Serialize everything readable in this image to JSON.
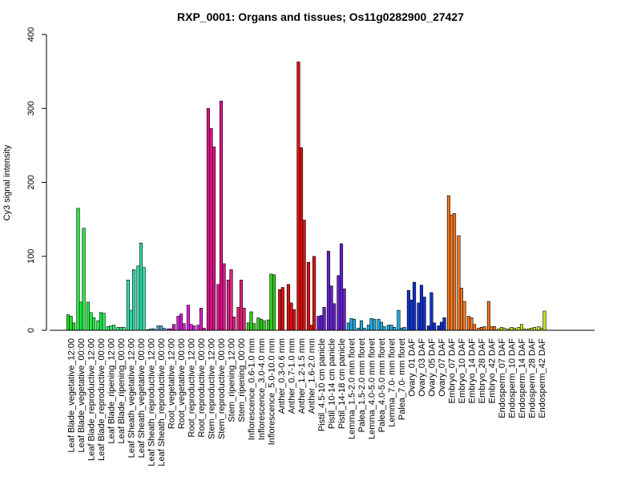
{
  "chart_data": {
    "type": "bar",
    "title": "RXP_0001: Organs and tissues; Os11g0282900_27427",
    "xlabel": "",
    "ylabel": "Cy3 signal intensity",
    "ylim": [
      0,
      400
    ],
    "yticks": [
      0,
      100,
      200,
      300,
      400
    ],
    "grid": false,
    "groups": [
      {
        "label": "Leaf Blade_vegetative_12:00",
        "color": "#22dd22",
        "values": [
          21,
          19,
          10
        ]
      },
      {
        "label": "Leaf Blade_vegetative_00:00",
        "color": "#22ee44",
        "values": [
          165,
          38,
          138
        ]
      },
      {
        "label": "Leaf Blade_reproductive_12:00",
        "color": "#22ee44",
        "values": [
          38,
          24,
          17
        ]
      },
      {
        "label": "Leaf Blade_reproductive_00:00",
        "color": "#22ee55",
        "values": [
          13,
          24,
          23
        ]
      },
      {
        "label": "Leaf Blade_ripening_12:00",
        "color": "#33ee77",
        "values": [
          5,
          6,
          7
        ]
      },
      {
        "label": "Leaf Blade_ripening_00:00",
        "color": "#33ee88",
        "values": [
          4,
          4,
          4
        ]
      },
      {
        "label": "Leaf Sheath_vegetative_12:00",
        "color": "#33ddaa",
        "values": [
          68,
          27,
          82
        ]
      },
      {
        "label": "Leaf Sheath_vegetative_00:00",
        "color": "#33ddaa",
        "values": [
          87,
          118,
          85
        ]
      },
      {
        "label": "Leaf Sheath_reproductive_12:00",
        "color": "#22cccc",
        "values": [
          1,
          2,
          2
        ]
      },
      {
        "label": "Leaf Sheath_reproductive_00:00",
        "color": "#55aacc",
        "values": [
          6,
          6,
          3
        ]
      },
      {
        "label": "Root_vegetative_12:00",
        "color": "#cc22cc",
        "values": [
          2,
          2,
          8
        ]
      },
      {
        "label": "Root_vegetative_00:00",
        "color": "#cc22cc",
        "values": [
          19,
          22,
          9
        ]
      },
      {
        "label": "Root_reproductive_12:00",
        "color": "#dd22dd",
        "values": [
          34,
          8,
          6
        ]
      },
      {
        "label": "Root_reproductive_00:00",
        "color": "#dd22cc",
        "values": [
          7,
          30,
          3
        ]
      },
      {
        "label": "Stem_reproductive_12:00",
        "color": "#dd1188",
        "values": [
          300,
          273,
          248
        ]
      },
      {
        "label": "Stem_reproductive_00:00",
        "color": "#dd1188",
        "values": [
          62,
          310,
          90
        ]
      },
      {
        "label": "Stem_ripening_12:00",
        "color": "#dd2288",
        "values": [
          68,
          82,
          18
        ]
      },
      {
        "label": "Stem_ripening_00:00",
        "color": "#dd2277",
        "values": [
          31,
          68,
          30
        ]
      },
      {
        "label": "Inflorescence_0.6-1.0 mm",
        "color": "#33cc22",
        "values": [
          10,
          25,
          9
        ]
      },
      {
        "label": "Inflorescence_3.0-4.0 mm",
        "color": "#33cc22",
        "values": [
          17,
          15,
          13
        ]
      },
      {
        "label": "Inflorescence_5.0-10.0 mm",
        "color": "#33cc22",
        "values": [
          14,
          76,
          75
        ]
      },
      {
        "label": "Anther_0.3-0.6 mm",
        "color": "#dd1111",
        "values": [
          55,
          58
        ]
      },
      {
        "label": "Anther_0.7-1.0 mm",
        "color": "#dd1111",
        "values": [
          62,
          37,
          28
        ]
      },
      {
        "label": "Anther_1.2-1.5 mm",
        "color": "#dd1111",
        "values": [
          363,
          247,
          149
        ]
      },
      {
        "label": "Anther_1.6-2.0 mm",
        "color": "#dd1111",
        "values": [
          92,
          7,
          100
        ]
      },
      {
        "label": "Pistil_4.5-10 cm panicle",
        "color": "#6622cc",
        "values": [
          19,
          20,
          31
        ]
      },
      {
        "label": "Pistil_10-14 cm panicle",
        "color": "#6622cc",
        "values": [
          107,
          60,
          36
        ]
      },
      {
        "label": "Pistil_14-18 cm panicle",
        "color": "#6622cc",
        "values": [
          74,
          117,
          56
        ]
      },
      {
        "label": "Lemma_1.5-2.0 mm floret",
        "color": "#22aadd",
        "values": [
          10,
          16,
          15
        ]
      },
      {
        "label": "Palea_1.5-2.0 mm floret",
        "color": "#22aadd",
        "values": [
          3,
          13,
          3
        ]
      },
      {
        "label": "Lemma_4.0-5.0 mm floret",
        "color": "#22aadd",
        "values": [
          7,
          16,
          15
        ]
      },
      {
        "label": "Palea_4.0-5.0 mm floret",
        "color": "#22aadd",
        "values": [
          15,
          11,
          5
        ]
      },
      {
        "label": "Lemma_7.0- mm floret",
        "color": "#22aadd",
        "values": [
          7,
          7,
          4
        ]
      },
      {
        "label": "Palea_7.0- mm floret",
        "color": "#22aadd",
        "values": [
          27,
          3,
          4
        ]
      },
      {
        "label": "Ovary_01 DAF",
        "color": "#1133cc",
        "values": [
          54,
          41,
          65
        ]
      },
      {
        "label": "Ovary_03 DAF",
        "color": "#1133cc",
        "values": [
          37,
          61,
          45
        ]
      },
      {
        "label": "Ovary_05 DAF",
        "color": "#1133cc",
        "values": [
          6,
          51,
          10
        ]
      },
      {
        "label": "Ovary_07 DAF",
        "color": "#1133cc",
        "values": [
          6,
          11,
          17
        ]
      },
      {
        "label": "Embryo_07 DAF",
        "color": "#ee7722",
        "values": [
          182,
          156,
          158
        ]
      },
      {
        "label": "Embryo_10 DAF",
        "color": "#ee7722",
        "values": [
          128,
          57,
          39
        ]
      },
      {
        "label": "Embryo_14 DAF",
        "color": "#ee7722",
        "values": [
          19,
          17,
          8
        ]
      },
      {
        "label": "Embryo_28 DAF",
        "color": "#ee7722",
        "values": [
          3,
          4,
          5
        ]
      },
      {
        "label": "Embryo_42 DAF",
        "color": "#ee7722",
        "values": [
          39,
          5,
          5
        ]
      },
      {
        "label": "Endosperm_07 DAF",
        "color": "#ccdd22",
        "values": [
          2,
          4,
          3
        ]
      },
      {
        "label": "Endosperm_10 DAF",
        "color": "#ccdd22",
        "values": [
          2,
          4,
          3
        ]
      },
      {
        "label": "Endosperm_14 DAF",
        "color": "#ccdd22",
        "values": [
          4,
          8,
          2
        ]
      },
      {
        "label": "Endosperm_28 DAF",
        "color": "#ccdd22",
        "values": [
          2,
          3,
          4
        ]
      },
      {
        "label": "Endosperm_42 DAF",
        "color": "#ccdd22",
        "values": [
          5,
          3,
          26
        ]
      }
    ]
  }
}
